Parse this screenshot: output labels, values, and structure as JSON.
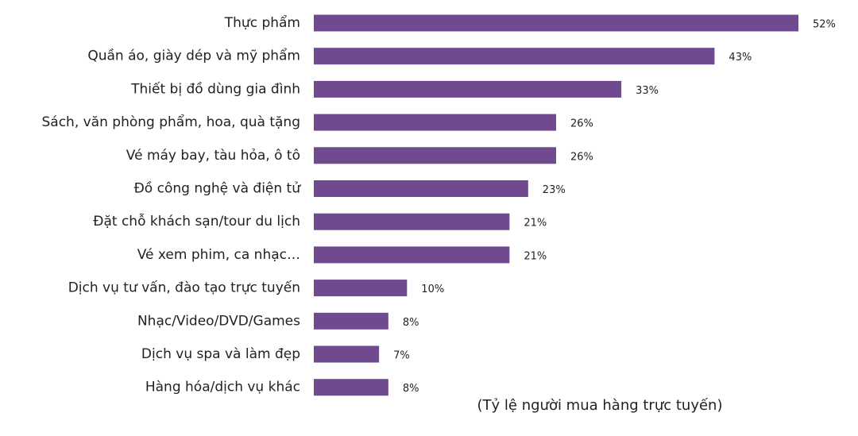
{
  "chart_data": {
    "type": "bar",
    "orientation": "horizontal",
    "categories": [
      "Thực phẩm",
      "Quần áo, giày dép và mỹ phẩm",
      "Thiết bị đồ dùng gia đình",
      "Sách, văn phòng phẩm, hoa, quà tặng",
      "Vé máy bay, tàu hỏa, ô tô",
      "Đồ công nghệ và điện tử",
      "Đặt chỗ khách sạn/tour du lịch",
      "Vé xem phim, ca nhạc…",
      "Dịch vụ tư vấn, đào tạo trực tuyến",
      "Nhạc/Video/DVD/Games",
      "Dịch vụ spa và làm đẹp",
      "Hàng hóa/dịch vụ khác"
    ],
    "values": [
      52,
      43,
      33,
      26,
      26,
      23,
      21,
      21,
      10,
      8,
      7,
      8
    ],
    "value_labels": [
      "52%",
      "43%",
      "33%",
      "26%",
      "26%",
      "23%",
      "21%",
      "21%",
      "10%",
      "8%",
      "7%",
      "8%"
    ],
    "color": "#6f4a8e",
    "x_label": "(Tỷ lệ người mua hàng trực tuyến)"
  }
}
